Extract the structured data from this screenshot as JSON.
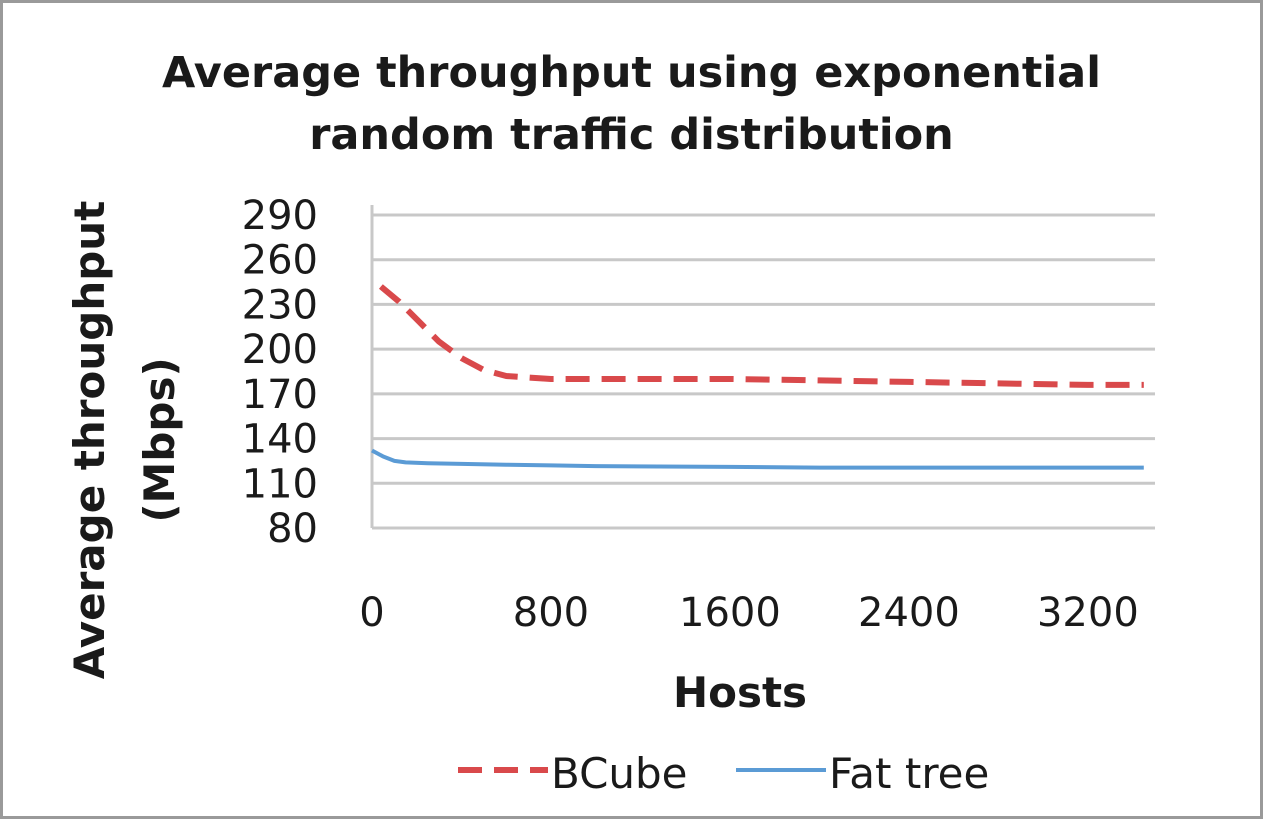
{
  "chart_data": {
    "type": "line",
    "title_lines": [
      "Average throughput using exponential",
      "random traffic distribution"
    ],
    "xlabel": "Hosts",
    "ylabel_lines": [
      "Average throughput",
      "(Mbps)"
    ],
    "x_ticks": [
      0,
      800,
      1600,
      2400,
      3200
    ],
    "y_ticks": [
      80,
      110,
      140,
      170,
      200,
      230,
      260,
      290
    ],
    "xlim": [
      0,
      3500
    ],
    "ylim": [
      80,
      290
    ],
    "grid": true,
    "legend_position": "bottom",
    "series": [
      {
        "name": "BCube",
        "style": "dashed",
        "color": "#d9494b",
        "x": [
          40,
          120,
          200,
          300,
          400,
          500,
          600,
          800,
          1000,
          1200,
          1600,
          2000,
          2400,
          2800,
          3200,
          3450
        ],
        "y": [
          242,
          232,
          220,
          205,
          194,
          186,
          182,
          180,
          180,
          180,
          180,
          179,
          178,
          177,
          176,
          176
        ]
      },
      {
        "name": "Fat tree",
        "style": "solid",
        "color": "#5b9bd5",
        "x": [
          0,
          50,
          100,
          150,
          250,
          400,
          600,
          800,
          1000,
          1600,
          2000,
          2400,
          2800,
          3200,
          3450
        ],
        "y": [
          132,
          128,
          125,
          124,
          123.5,
          123,
          122.5,
          122,
          121.5,
          121,
          120.5,
          120.5,
          120.5,
          120.5,
          120.5
        ]
      }
    ]
  }
}
